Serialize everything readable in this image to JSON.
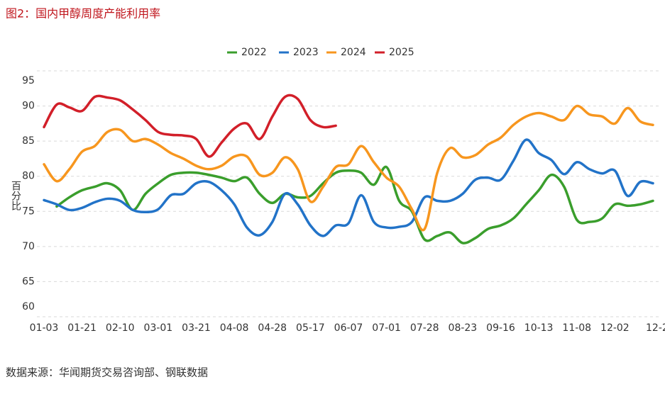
{
  "chart_data": {
    "type": "line",
    "title": "图2：国内甲醇周度产能利用率",
    "y_label": "百分比",
    "source": "数据来源：华闻期货交易咨询部、钢联数据",
    "categories": [
      "01-03",
      null,
      null,
      "01-21",
      null,
      null,
      "02-10",
      null,
      null,
      "03-01",
      null,
      null,
      "03-21",
      null,
      null,
      "04-08",
      null,
      null,
      "04-28",
      null,
      null,
      "05-17",
      null,
      null,
      "06-07",
      null,
      null,
      "07-01",
      null,
      null,
      "07-28",
      null,
      null,
      "08-23",
      null,
      null,
      "09-16",
      null,
      null,
      "10-13",
      null,
      null,
      "11-08",
      null,
      null,
      "12-02",
      null,
      null,
      "12-2"
    ],
    "ylim": [
      60,
      95
    ],
    "yticks": [
      60,
      65,
      70,
      75,
      80,
      85,
      90,
      95
    ],
    "grid": true,
    "legend": "top",
    "series": [
      {
        "name": "2022",
        "color": "#3a9e2c",
        "values": [
          null,
          75.7,
          77,
          78,
          78.5,
          79,
          78,
          75.2,
          77.5,
          79,
          80.2,
          80.5,
          80.5,
          80.2,
          79.8,
          79.3,
          79.8,
          77.5,
          76.2,
          77.5,
          77,
          77.2,
          79,
          80.5,
          80.8,
          80.5,
          78.8,
          81.3,
          76.5,
          75,
          71,
          71.5,
          72,
          70.5,
          71.2,
          72.5,
          73,
          74,
          76,
          78,
          80.2,
          78.5,
          73.8,
          73.5,
          74,
          76,
          75.8,
          76,
          76.5
        ]
      },
      {
        "name": "2023",
        "color": "#2273c8",
        "values": [
          76.6,
          76,
          75.2,
          75.5,
          76.3,
          76.8,
          76.5,
          75.2,
          74.9,
          75.3,
          77.3,
          77.5,
          79,
          79.2,
          78,
          76,
          72.7,
          71.6,
          73.5,
          77.5,
          76,
          73,
          71.5,
          73,
          73.3,
          77.3,
          73.5,
          72.7,
          72.8,
          73.5,
          77,
          76.5,
          76.5,
          77.5,
          79.5,
          79.8,
          79.5,
          82.2,
          85.2,
          83.3,
          82.3,
          80.3,
          82,
          81,
          80.4,
          80.8,
          77.2,
          79.2,
          79
        ]
      },
      {
        "name": "2024",
        "color": "#f7961e",
        "values": [
          81.7,
          79.3,
          81,
          83.5,
          84.3,
          86.3,
          86.6,
          85,
          85.3,
          84.5,
          83.3,
          82.5,
          81.5,
          81,
          81.5,
          82.8,
          82.8,
          80.2,
          80.5,
          82.7,
          81,
          76.4,
          78.5,
          81.3,
          81.7,
          84.3,
          82,
          79.8,
          78.5,
          75.3,
          72.5,
          80.5,
          84,
          82.7,
          83,
          84.5,
          85.5,
          87.3,
          88.5,
          89,
          88.5,
          88,
          90,
          88.8,
          88.5,
          87.5,
          89.7,
          87.8,
          87.3
        ]
      },
      {
        "name": "2025",
        "color": "#d21f29",
        "values": [
          87,
          90.2,
          89.8,
          89.3,
          91.3,
          91.2,
          90.8,
          89.5,
          88,
          86.3,
          85.9,
          85.8,
          85.3,
          82.8,
          84.8,
          86.8,
          87.5,
          85.3,
          88.5,
          91.3,
          91,
          88,
          87,
          87.2,
          null,
          null,
          null,
          null,
          null,
          null,
          null,
          null,
          null,
          null,
          null,
          null,
          null,
          null,
          null,
          null,
          null,
          null,
          null,
          null,
          null,
          null,
          null,
          null,
          null
        ]
      }
    ]
  }
}
